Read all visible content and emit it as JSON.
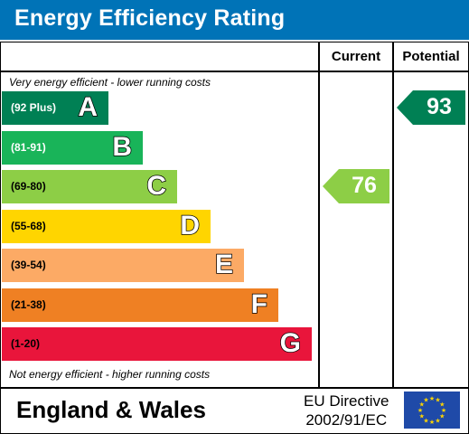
{
  "header": {
    "title": "Energy Efficiency Rating"
  },
  "columns": {
    "current": "Current",
    "potential": "Potential"
  },
  "notes": {
    "top": "Very energy efficient - lower running costs",
    "bottom": "Not energy efficient - higher running costs"
  },
  "chart_data": {
    "type": "bar",
    "bands": [
      {
        "letter": "A",
        "range": "(92 Plus)",
        "color": "#008054",
        "text_color": "#ffffff"
      },
      {
        "letter": "B",
        "range": "(81-91)",
        "color": "#19b459",
        "text_color": "#ffffff"
      },
      {
        "letter": "C",
        "range": "(69-80)",
        "color": "#8dce46",
        "text_color": "#000000"
      },
      {
        "letter": "D",
        "range": "(55-68)",
        "color": "#ffd500",
        "text_color": "#000000"
      },
      {
        "letter": "E",
        "range": "(39-54)",
        "color": "#fcaa65",
        "text_color": "#000000"
      },
      {
        "letter": "F",
        "range": "(21-38)",
        "color": "#ef8023",
        "text_color": "#000000"
      },
      {
        "letter": "G",
        "range": "(1-20)",
        "color": "#e9153b",
        "text_color": "#000000"
      }
    ],
    "current": {
      "value": 76,
      "band": "C",
      "color": "#8dce46"
    },
    "potential": {
      "value": 93,
      "band": "A",
      "color": "#008054"
    }
  },
  "footer": {
    "region": "England & Wales",
    "directive_line1": "EU Directive",
    "directive_line2": "2002/91/EC"
  }
}
